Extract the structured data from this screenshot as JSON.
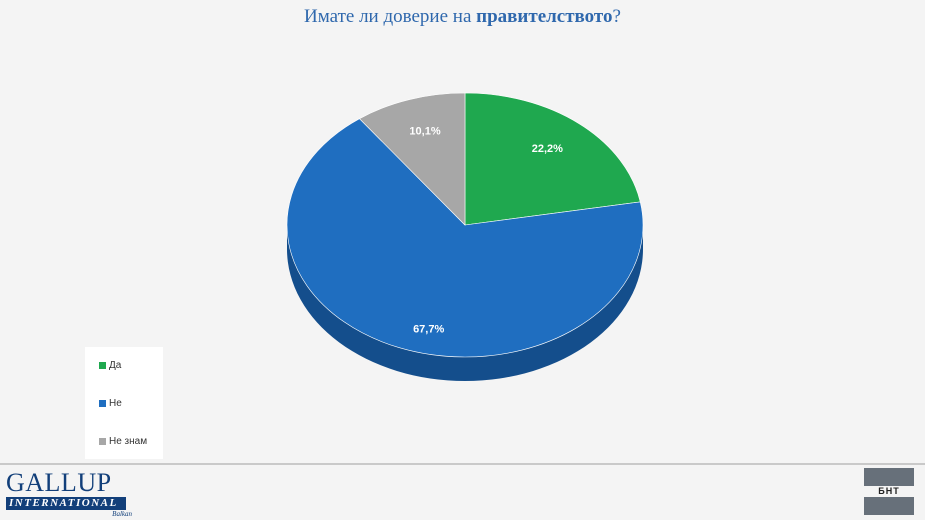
{
  "title": {
    "prefix": "Имате ли доверие на ",
    "emphasis": "правителството",
    "suffix": "?"
  },
  "chart_data": {
    "type": "pie",
    "title": "Имате ли доверие на правителството?",
    "slices": [
      {
        "label": "Да",
        "value": 22.2,
        "display": "22,2%",
        "color": "#1fa84f",
        "side": "#137a37"
      },
      {
        "label": "Не",
        "value": 67.7,
        "display": "67,7%",
        "color": "#1f6ec0",
        "side": "#144e8c"
      },
      {
        "label": "Не знам",
        "value": 10.1,
        "display": "10,1%",
        "color": "#a7a7a7",
        "side": "#7d7d7d"
      }
    ],
    "legend_position": "bottom-left",
    "style": "3d"
  },
  "legend": {
    "items": [
      "Да",
      "Не",
      "Не знам"
    ]
  },
  "logos": {
    "gallup_main": "GALLUP",
    "gallup_band": "INTERNATIONAL",
    "gallup_sub": "Balkan",
    "bnt": "БНТ"
  }
}
